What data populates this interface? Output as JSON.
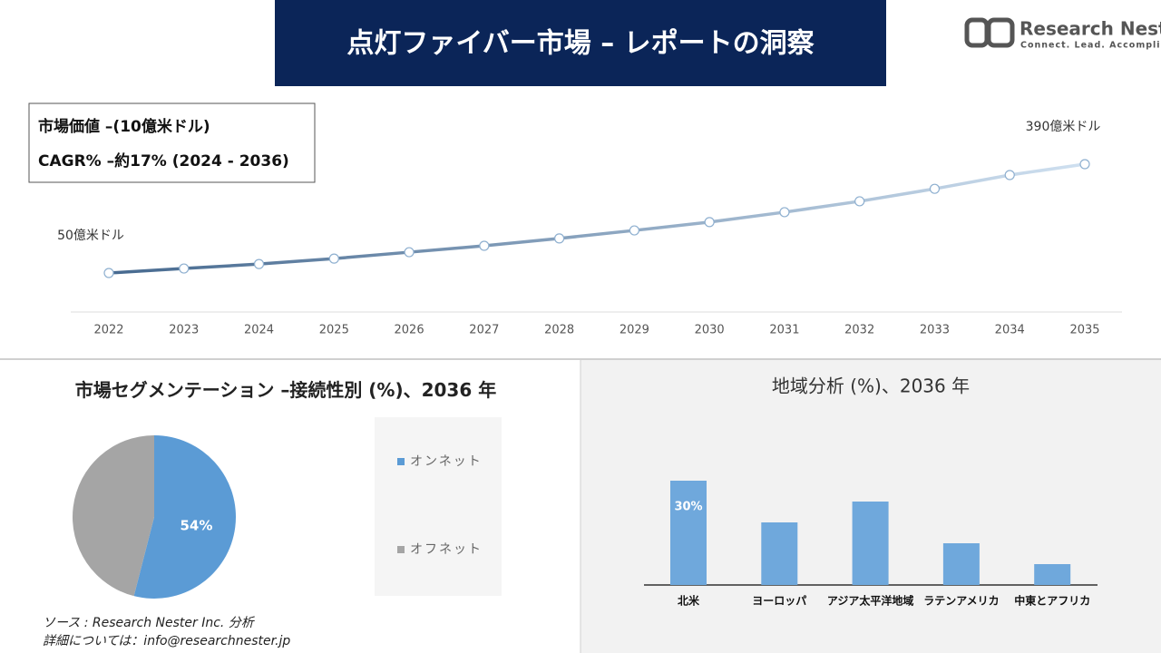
{
  "header": {
    "title": "点灯ファイバー市場 – レポートの洞察",
    "logo_name": "Research Nester",
    "logo_tagline": "Connect. Lead. Accomplish"
  },
  "chart_data": [
    {
      "type": "line",
      "annotations": [
        "市場価値 –(10億米ドル)",
        "CAGR% –約17% (2024 - 2036)"
      ],
      "x": [
        2022,
        2023,
        2024,
        2025,
        2026,
        2027,
        2028,
        2029,
        2030,
        2031,
        2032,
        2033,
        2034,
        2035
      ],
      "values": [
        50,
        64,
        78,
        95,
        115,
        135,
        158,
        183,
        209,
        240,
        274,
        313,
        356,
        390
      ],
      "value_labels": [
        "50億米ドル",
        null,
        null,
        null,
        null,
        null,
        null,
        null,
        null,
        null,
        null,
        null,
        null,
        "390億米ドル"
      ],
      "color": [
        "#46698f",
        "#cfe0f0"
      ]
    },
    {
      "type": "pie",
      "title": "市場セグメンテーション –接続性別 (%)、2036 年",
      "categories": [
        "オンネット",
        "オフネット"
      ],
      "values": [
        54,
        46
      ],
      "value_labels": [
        "54%",
        null
      ],
      "colors": [
        "#5b9bd5",
        "#a5a5a5"
      ],
      "legend": "right"
    },
    {
      "type": "bar",
      "title": "地域分析 (%)、2036 年",
      "categories": [
        "北米",
        "ヨーロッパ",
        "アジア太平洋地域",
        "ラテンアメリカ",
        "中東とアフリカ"
      ],
      "values": [
        30,
        18,
        24,
        12,
        6
      ],
      "value_labels": [
        "30%",
        null,
        null,
        null,
        null
      ],
      "color": "#6fa8dc"
    }
  ],
  "footer": {
    "source": "ソース : Research Nester Inc. 分析",
    "contact": "詳細については：info@researchnester.jp"
  }
}
